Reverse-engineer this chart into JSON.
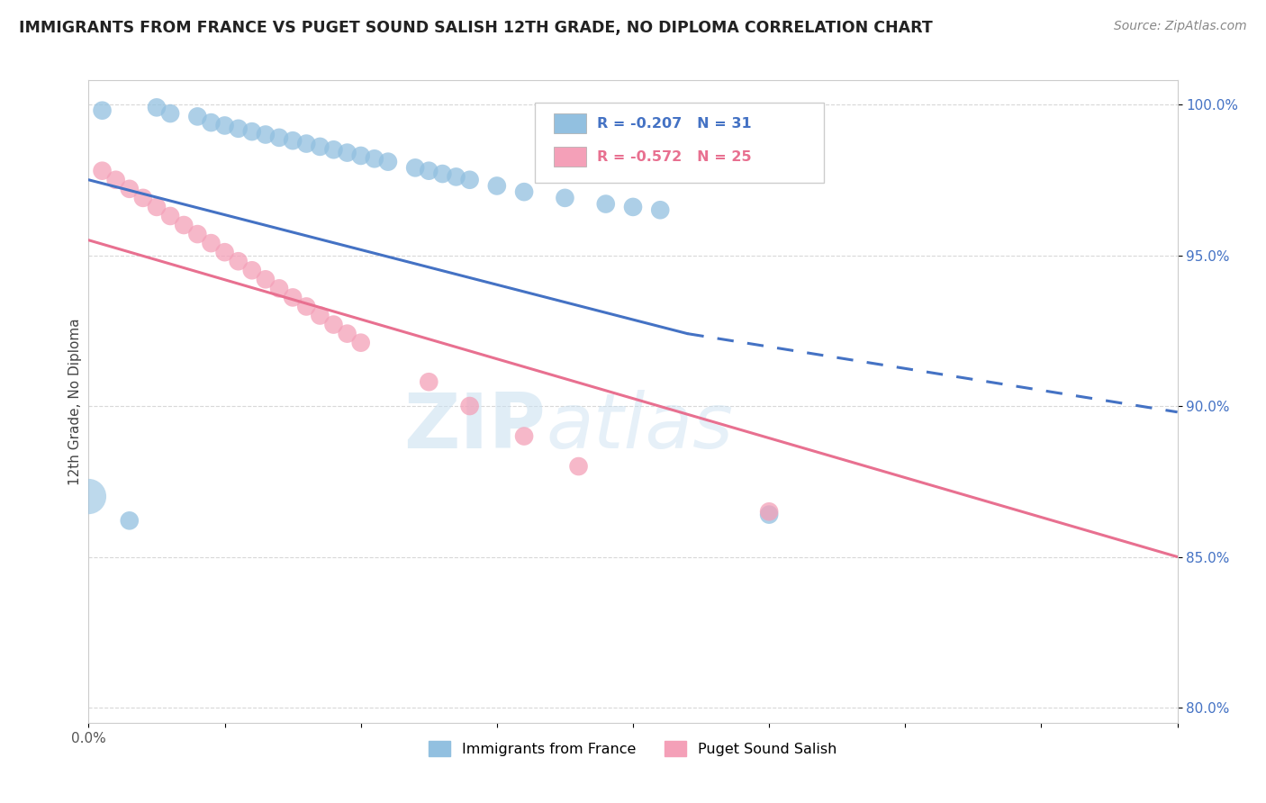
{
  "title": "IMMIGRANTS FROM FRANCE VS PUGET SOUND SALISH 12TH GRADE, NO DIPLOMA CORRELATION CHART",
  "source": "Source: ZipAtlas.com",
  "ylabel": "12th Grade, No Diploma",
  "xlim": [
    0.0,
    0.08
  ],
  "ylim": [
    0.795,
    1.008
  ],
  "xtick_labels": [
    "0.0%",
    "",
    "",
    "",
    "",
    "",
    "",
    "",
    ""
  ],
  "xtick_values": [
    0.0,
    0.01,
    0.02,
    0.03,
    0.04,
    0.05,
    0.06,
    0.07,
    0.08
  ],
  "ytick_labels": [
    "80.0%",
    "85.0%",
    "90.0%",
    "95.0%",
    "100.0%"
  ],
  "ytick_values": [
    0.8,
    0.85,
    0.9,
    0.95,
    1.0
  ],
  "legend_blue_label": "Immigrants from France",
  "legend_pink_label": "Puget Sound Salish",
  "R_blue": -0.207,
  "N_blue": 31,
  "R_pink": -0.572,
  "N_pink": 25,
  "blue_color": "#92c0e0",
  "pink_color": "#f4a0b8",
  "blue_line_color": "#4472c4",
  "pink_line_color": "#e87090",
  "watermark_zip": "ZIP",
  "watermark_atlas": "atlas",
  "background_color": "#ffffff",
  "grid_color": "#d8d8d8",
  "blue_scatter_x": [
    0.001,
    0.005,
    0.006,
    0.008,
    0.009,
    0.01,
    0.011,
    0.012,
    0.013,
    0.014,
    0.015,
    0.016,
    0.017,
    0.018,
    0.019,
    0.02,
    0.021,
    0.022,
    0.024,
    0.025,
    0.026,
    0.027,
    0.028,
    0.03,
    0.032,
    0.035,
    0.038,
    0.04,
    0.042,
    0.003,
    0.05
  ],
  "blue_scatter_y": [
    0.998,
    0.999,
    0.997,
    0.996,
    0.994,
    0.993,
    0.992,
    0.991,
    0.99,
    0.989,
    0.988,
    0.987,
    0.986,
    0.985,
    0.984,
    0.983,
    0.982,
    0.981,
    0.979,
    0.978,
    0.977,
    0.976,
    0.975,
    0.973,
    0.971,
    0.969,
    0.967,
    0.966,
    0.965,
    0.862,
    0.864
  ],
  "pink_scatter_x": [
    0.001,
    0.002,
    0.003,
    0.004,
    0.005,
    0.006,
    0.007,
    0.008,
    0.009,
    0.01,
    0.011,
    0.012,
    0.013,
    0.014,
    0.015,
    0.016,
    0.017,
    0.018,
    0.019,
    0.02,
    0.025,
    0.028,
    0.032,
    0.036,
    0.05
  ],
  "pink_scatter_y": [
    0.978,
    0.975,
    0.972,
    0.969,
    0.966,
    0.963,
    0.96,
    0.957,
    0.954,
    0.951,
    0.948,
    0.945,
    0.942,
    0.939,
    0.936,
    0.933,
    0.93,
    0.927,
    0.924,
    0.921,
    0.908,
    0.9,
    0.89,
    0.88,
    0.865
  ],
  "blue_line_x0": 0.0,
  "blue_line_y0": 0.975,
  "blue_line_x1_solid": 0.044,
  "blue_line_y1_solid": 0.924,
  "blue_line_x1_dash": 0.08,
  "blue_line_y1_dash": 0.898,
  "pink_line_x0": 0.0,
  "pink_line_y0": 0.955,
  "pink_line_x1": 0.08,
  "pink_line_y1": 0.85
}
